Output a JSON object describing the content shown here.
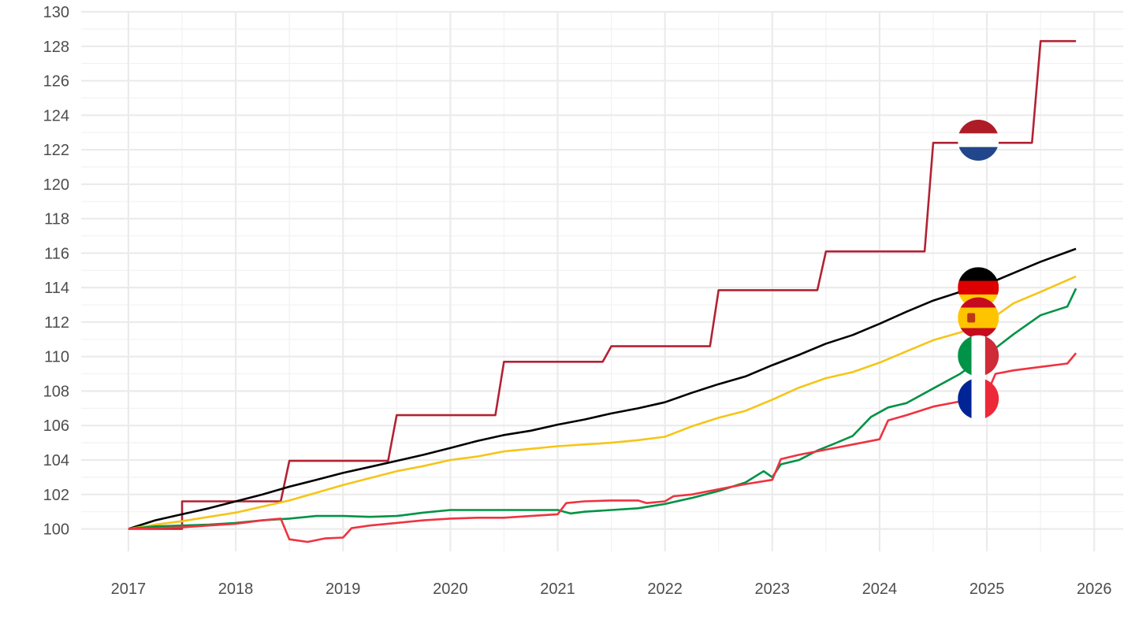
{
  "chart_data": {
    "type": "line",
    "title": "",
    "xlabel": "",
    "ylabel": "",
    "xlim": [
      2016.56,
      2026.27
    ],
    "ylim": [
      98.7,
      130
    ],
    "x_ticks": [
      2017,
      2018,
      2019,
      2020,
      2021,
      2022,
      2023,
      2024,
      2025,
      2026
    ],
    "y_ticks": [
      100,
      102,
      104,
      106,
      108,
      110,
      112,
      114,
      116,
      118,
      120,
      122,
      124,
      126,
      128,
      130
    ],
    "grid": true,
    "legend": "flag icons near series ends",
    "series": [
      {
        "country": "Netherlands",
        "color": "#b22234",
        "icon": "netherlands-flag-icon",
        "points": [
          [
            2017.0,
            100
          ],
          [
            2017.5,
            100
          ],
          [
            2017.5,
            101.6
          ],
          [
            2018.42,
            101.6
          ],
          [
            2018.5,
            103.95
          ],
          [
            2019.42,
            103.95
          ],
          [
            2019.5,
            106.6
          ],
          [
            2020.42,
            106.6
          ],
          [
            2020.5,
            109.7
          ],
          [
            2021.42,
            109.7
          ],
          [
            2021.5,
            110.6
          ],
          [
            2022.42,
            110.6
          ],
          [
            2022.5,
            113.85
          ],
          [
            2023.42,
            113.85
          ],
          [
            2023.5,
            116.1
          ],
          [
            2024.42,
            116.1
          ],
          [
            2024.5,
            122.4
          ],
          [
            2025.42,
            122.4
          ],
          [
            2025.5,
            128.3
          ],
          [
            2025.83,
            128.3
          ]
        ]
      },
      {
        "country": "Germany",
        "color": "#000000",
        "icon": "germany-flag-icon",
        "points": [
          [
            2017.0,
            100
          ],
          [
            2017.25,
            100.5
          ],
          [
            2017.5,
            100.85
          ],
          [
            2017.75,
            101.2
          ],
          [
            2018.0,
            101.6
          ],
          [
            2018.25,
            102.0
          ],
          [
            2018.5,
            102.45
          ],
          [
            2018.75,
            102.85
          ],
          [
            2019.0,
            103.25
          ],
          [
            2019.25,
            103.6
          ],
          [
            2019.5,
            103.95
          ],
          [
            2019.75,
            104.3
          ],
          [
            2020.0,
            104.7
          ],
          [
            2020.25,
            105.1
          ],
          [
            2020.5,
            105.45
          ],
          [
            2020.75,
            105.7
          ],
          [
            2021.0,
            106.05
          ],
          [
            2021.25,
            106.35
          ],
          [
            2021.5,
            106.7
          ],
          [
            2021.75,
            107.0
          ],
          [
            2022.0,
            107.35
          ],
          [
            2022.25,
            107.9
          ],
          [
            2022.5,
            108.4
          ],
          [
            2022.75,
            108.85
          ],
          [
            2023.0,
            109.5
          ],
          [
            2023.25,
            110.1
          ],
          [
            2023.5,
            110.75
          ],
          [
            2023.75,
            111.25
          ],
          [
            2024.0,
            111.9
          ],
          [
            2024.25,
            112.6
          ],
          [
            2024.5,
            113.25
          ],
          [
            2024.75,
            113.75
          ],
          [
            2025.0,
            114.2
          ],
          [
            2025.25,
            114.85
          ],
          [
            2025.5,
            115.5
          ],
          [
            2025.83,
            116.25
          ]
        ]
      },
      {
        "country": "Spain",
        "color": "#f5c518",
        "icon": "spain-flag-icon",
        "points": [
          [
            2017.0,
            100
          ],
          [
            2017.25,
            100.25
          ],
          [
            2017.5,
            100.45
          ],
          [
            2017.75,
            100.7
          ],
          [
            2018.0,
            100.95
          ],
          [
            2018.25,
            101.3
          ],
          [
            2018.5,
            101.65
          ],
          [
            2018.75,
            102.1
          ],
          [
            2019.0,
            102.55
          ],
          [
            2019.25,
            102.95
          ],
          [
            2019.5,
            103.35
          ],
          [
            2019.75,
            103.65
          ],
          [
            2020.0,
            104.0
          ],
          [
            2020.25,
            104.2
          ],
          [
            2020.5,
            104.5
          ],
          [
            2020.75,
            104.65
          ],
          [
            2021.0,
            104.8
          ],
          [
            2021.25,
            104.9
          ],
          [
            2021.5,
            105.0
          ],
          [
            2021.75,
            105.15
          ],
          [
            2022.0,
            105.35
          ],
          [
            2022.25,
            105.95
          ],
          [
            2022.5,
            106.45
          ],
          [
            2022.75,
            106.85
          ],
          [
            2023.0,
            107.5
          ],
          [
            2023.25,
            108.2
          ],
          [
            2023.5,
            108.75
          ],
          [
            2023.75,
            109.1
          ],
          [
            2024.0,
            109.65
          ],
          [
            2024.25,
            110.3
          ],
          [
            2024.5,
            110.95
          ],
          [
            2024.75,
            111.4
          ],
          [
            2025.0,
            112.0
          ],
          [
            2025.25,
            113.1
          ],
          [
            2025.5,
            113.75
          ],
          [
            2025.83,
            114.65
          ]
        ]
      },
      {
        "country": "Italy",
        "color": "#009246",
        "icon": "italy-flag-icon",
        "points": [
          [
            2017.0,
            100
          ],
          [
            2017.25,
            100.15
          ],
          [
            2017.5,
            100.2
          ],
          [
            2017.75,
            100.25
          ],
          [
            2018.0,
            100.35
          ],
          [
            2018.25,
            100.5
          ],
          [
            2018.5,
            100.6
          ],
          [
            2018.75,
            100.75
          ],
          [
            2019.0,
            100.75
          ],
          [
            2019.25,
            100.7
          ],
          [
            2019.5,
            100.75
          ],
          [
            2019.75,
            100.95
          ],
          [
            2020.0,
            101.1
          ],
          [
            2020.25,
            101.1
          ],
          [
            2020.5,
            101.1
          ],
          [
            2020.75,
            101.1
          ],
          [
            2021.0,
            101.1
          ],
          [
            2021.12,
            100.9
          ],
          [
            2021.25,
            101.0
          ],
          [
            2021.5,
            101.1
          ],
          [
            2021.75,
            101.2
          ],
          [
            2022.0,
            101.45
          ],
          [
            2022.25,
            101.8
          ],
          [
            2022.5,
            102.2
          ],
          [
            2022.75,
            102.7
          ],
          [
            2022.92,
            103.35
          ],
          [
            2023.0,
            103.0
          ],
          [
            2023.08,
            103.75
          ],
          [
            2023.25,
            104.0
          ],
          [
            2023.42,
            104.55
          ],
          [
            2023.58,
            104.95
          ],
          [
            2023.75,
            105.4
          ],
          [
            2023.92,
            106.5
          ],
          [
            2024.08,
            107.05
          ],
          [
            2024.25,
            107.3
          ],
          [
            2024.5,
            108.15
          ],
          [
            2024.75,
            109.0
          ],
          [
            2025.0,
            110.1
          ],
          [
            2025.25,
            111.3
          ],
          [
            2025.5,
            112.4
          ],
          [
            2025.75,
            112.9
          ],
          [
            2025.83,
            113.95
          ]
        ]
      },
      {
        "country": "France",
        "color": "#ef3340",
        "icon": "france-flag-icon",
        "points": [
          [
            2017.0,
            100
          ],
          [
            2017.25,
            100.05
          ],
          [
            2017.5,
            100.1
          ],
          [
            2017.75,
            100.2
          ],
          [
            2018.0,
            100.3
          ],
          [
            2018.25,
            100.5
          ],
          [
            2018.42,
            100.6
          ],
          [
            2018.5,
            99.4
          ],
          [
            2018.67,
            99.25
          ],
          [
            2018.83,
            99.45
          ],
          [
            2019.0,
            99.5
          ],
          [
            2019.08,
            100.05
          ],
          [
            2019.25,
            100.2
          ],
          [
            2019.5,
            100.35
          ],
          [
            2019.75,
            100.5
          ],
          [
            2020.0,
            100.6
          ],
          [
            2020.25,
            100.65
          ],
          [
            2020.5,
            100.65
          ],
          [
            2020.75,
            100.75
          ],
          [
            2021.0,
            100.85
          ],
          [
            2021.08,
            101.5
          ],
          [
            2021.25,
            101.6
          ],
          [
            2021.5,
            101.65
          ],
          [
            2021.75,
            101.65
          ],
          [
            2021.83,
            101.5
          ],
          [
            2022.0,
            101.6
          ],
          [
            2022.08,
            101.9
          ],
          [
            2022.25,
            102.0
          ],
          [
            2022.5,
            102.3
          ],
          [
            2022.75,
            102.6
          ],
          [
            2023.0,
            102.85
          ],
          [
            2023.08,
            104.05
          ],
          [
            2023.25,
            104.3
          ],
          [
            2023.5,
            104.6
          ],
          [
            2023.75,
            104.9
          ],
          [
            2024.0,
            105.2
          ],
          [
            2024.08,
            106.3
          ],
          [
            2024.25,
            106.6
          ],
          [
            2024.5,
            107.1
          ],
          [
            2024.75,
            107.4
          ],
          [
            2025.0,
            107.85
          ],
          [
            2025.08,
            109.0
          ],
          [
            2025.25,
            109.2
          ],
          [
            2025.5,
            109.4
          ],
          [
            2025.75,
            109.6
          ],
          [
            2025.83,
            110.2
          ]
        ]
      }
    ],
    "flag_markers": [
      {
        "icon": "netherlands-flag-icon",
        "x": 2024.92,
        "y": 122.55
      },
      {
        "icon": "germany-flag-icon",
        "x": 2024.92,
        "y": 114.0
      },
      {
        "icon": "spain-flag-icon",
        "x": 2024.92,
        "y": 112.25
      },
      {
        "icon": "italy-flag-icon",
        "x": 2024.92,
        "y": 110.05
      },
      {
        "icon": "france-flag-icon",
        "x": 2024.92,
        "y": 107.55
      }
    ]
  }
}
